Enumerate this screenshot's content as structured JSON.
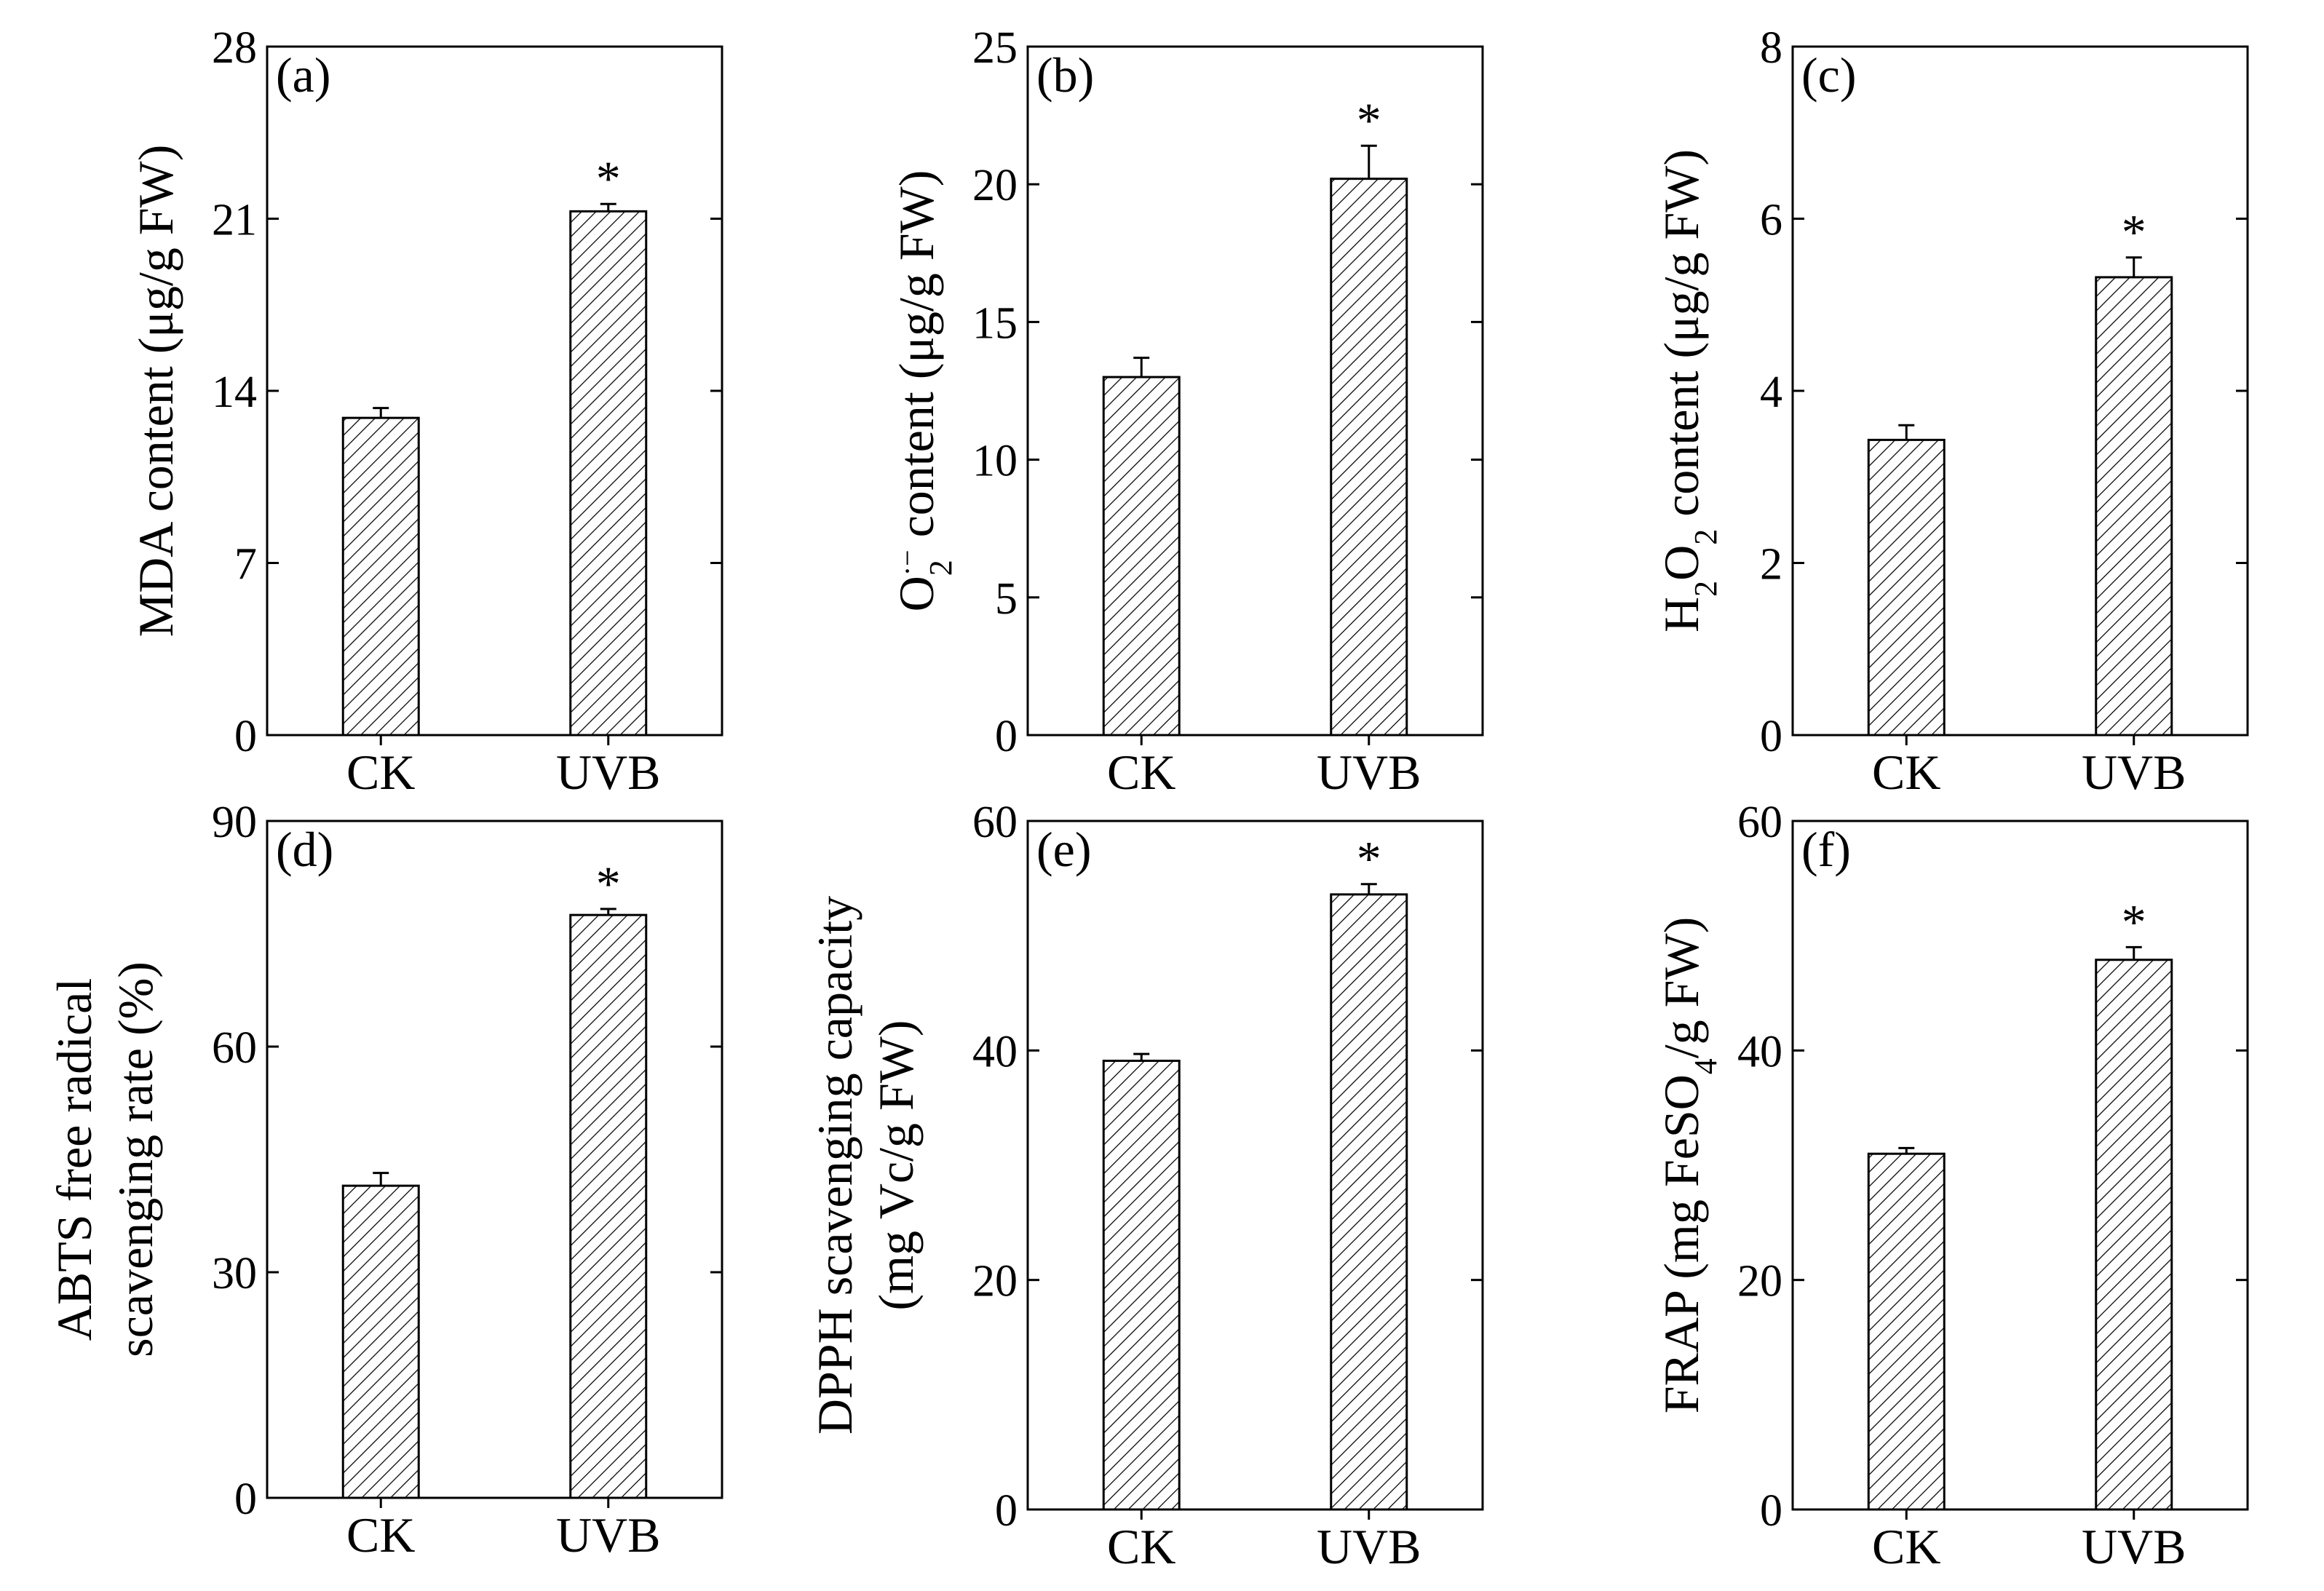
{
  "chart_data": [
    {
      "type": "bar",
      "panel_label": "(a)",
      "ylabel": "MDA content (μg/g FW)",
      "categories": [
        "CK",
        "UVB"
      ],
      "values": [
        12.9,
        21.3
      ],
      "errors": [
        0.4,
        0.3
      ],
      "significance": [
        "",
        "*"
      ],
      "ylim": [
        0,
        28
      ],
      "yticks": [
        0,
        7,
        14,
        21,
        28
      ]
    },
    {
      "type": "bar",
      "panel_label": "(b)",
      "ylabel": "O2·− content (μg/g FW)",
      "ylabel_parts": {
        "main": "O",
        "sub": "2",
        "sup": "·−",
        "rest": " content (μg/g FW)"
      },
      "categories": [
        "CK",
        "UVB"
      ],
      "values": [
        13.0,
        20.2
      ],
      "errors": [
        0.7,
        1.2
      ],
      "significance": [
        "",
        "*"
      ],
      "ylim": [
        0,
        25
      ],
      "yticks": [
        0,
        5,
        10,
        15,
        20,
        25
      ]
    },
    {
      "type": "bar",
      "panel_label": "(c)",
      "ylabel": "H2O2 content (μg/g FW)",
      "ylabel_parts": {
        "a": "H",
        "b": "2",
        "c": "O",
        "d": "2",
        "rest": " content (μg/g FW)"
      },
      "categories": [
        "CK",
        "UVB"
      ],
      "values": [
        3.43,
        5.32
      ],
      "errors": [
        0.17,
        0.23
      ],
      "significance": [
        "",
        "*"
      ],
      "ylim": [
        0,
        8
      ],
      "yticks": [
        0,
        2,
        4,
        6,
        8
      ]
    },
    {
      "type": "bar",
      "panel_label": "(d)",
      "ylabel_lines": [
        "ABTS free radical",
        "scavenging rate (%)"
      ],
      "categories": [
        "CK",
        "UVB"
      ],
      "values": [
        41.5,
        77.5
      ],
      "errors": [
        1.7,
        0.8
      ],
      "significance": [
        "",
        "*"
      ],
      "ylim": [
        0,
        90
      ],
      "yticks": [
        0,
        30,
        60,
        90
      ]
    },
    {
      "type": "bar",
      "panel_label": "(e)",
      "ylabel_lines": [
        "DPPH scavenging capacity",
        "(mg Vc/g FW)"
      ],
      "categories": [
        "CK",
        "UVB"
      ],
      "values": [
        39.1,
        53.6
      ],
      "errors": [
        0.6,
        0.9
      ],
      "significance": [
        "",
        "*"
      ],
      "ylim": [
        0,
        60
      ],
      "yticks": [
        0,
        20,
        40,
        60
      ]
    },
    {
      "type": "bar",
      "panel_label": "(f)",
      "ylabel": "FRAP (mg FeSO4/g FW)",
      "ylabel_parts": {
        "a": "FRAP (mg FeSO",
        "b": "4",
        "c": "/g FW)"
      },
      "categories": [
        "CK",
        "UVB"
      ],
      "values": [
        31.0,
        47.9
      ],
      "errors": [
        0.5,
        1.1
      ],
      "significance": [
        "",
        "*"
      ],
      "ylim": [
        0,
        60
      ],
      "yticks": [
        0,
        20,
        40,
        60
      ]
    }
  ]
}
